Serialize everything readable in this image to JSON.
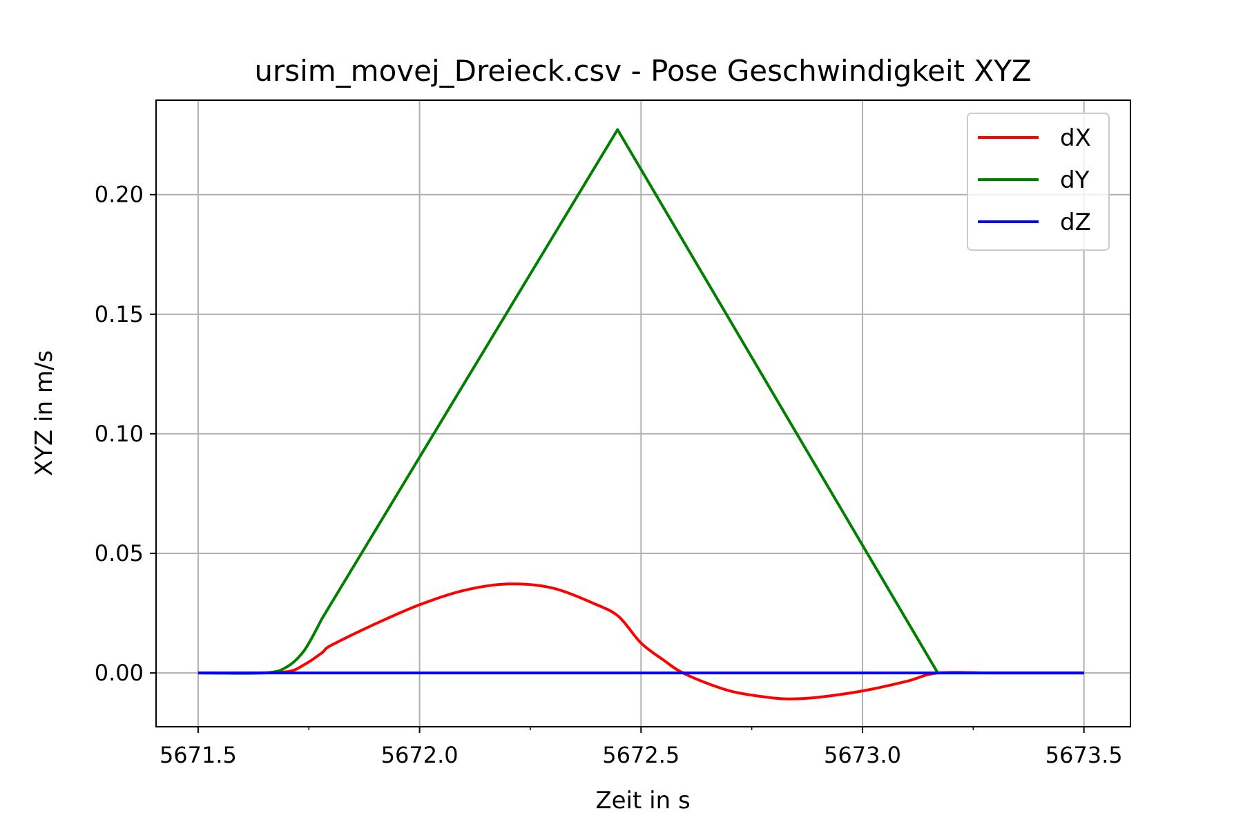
{
  "chart_data": {
    "type": "line",
    "title": "ursim_movej_Dreieck.csv - Pose Geschwindigkeit XYZ",
    "xlabel": "Zeit in s",
    "ylabel": "XYZ in m/s",
    "xlim": [
      5671.405,
      5673.605
    ],
    "ylim": [
      -0.0225,
      0.2395
    ],
    "x_ticks": [
      5671.5,
      5672.0,
      5672.5,
      5673.0,
      5673.5
    ],
    "x_tick_labels": [
      "5671.5",
      "5672.0",
      "5672.5",
      "5673.0",
      "5673.5"
    ],
    "x_minor_ticks": [
      5671.75,
      5672.25,
      5672.75,
      5673.25
    ],
    "y_ticks": [
      0.0,
      0.05,
      0.1,
      0.15,
      0.2
    ],
    "y_tick_labels": [
      "0.00",
      "0.05",
      "0.10",
      "0.15",
      "0.20"
    ],
    "grid": true,
    "legend_position": "top-right",
    "series": [
      {
        "name": "dX",
        "color": "#ff0000",
        "x": [
          5671.5,
          5671.6,
          5671.7,
          5671.74,
          5671.78,
          5671.8,
          5671.9,
          5672.0,
          5672.1,
          5672.2,
          5672.3,
          5672.4,
          5672.45,
          5672.5,
          5672.55,
          5672.6,
          5672.7,
          5672.8,
          5672.85,
          5672.9,
          5673.0,
          5673.1,
          5673.17,
          5673.3,
          5673.5
        ],
        "y": [
          0.0,
          0.0,
          0.0005,
          0.0035,
          0.0085,
          0.0115,
          0.0205,
          0.0285,
          0.0345,
          0.0372,
          0.0355,
          0.0285,
          0.0235,
          0.0125,
          0.0055,
          -0.0005,
          -0.0075,
          -0.0105,
          -0.0108,
          -0.0102,
          -0.0075,
          -0.0035,
          0.0,
          0.0,
          0.0
        ]
      },
      {
        "name": "dY",
        "color": "#008000",
        "x": [
          5671.5,
          5671.65,
          5671.7,
          5671.74,
          5671.78,
          5672.447,
          5673.17,
          5673.3,
          5673.5
        ],
        "y": [
          0.0,
          0.0,
          0.0025,
          0.0095,
          0.0228,
          0.2272,
          0.0,
          0.0,
          0.0
        ]
      },
      {
        "name": "dZ",
        "color": "#0000ff",
        "x": [
          5671.5,
          5673.5
        ],
        "y": [
          0.0,
          0.0
        ]
      }
    ]
  }
}
